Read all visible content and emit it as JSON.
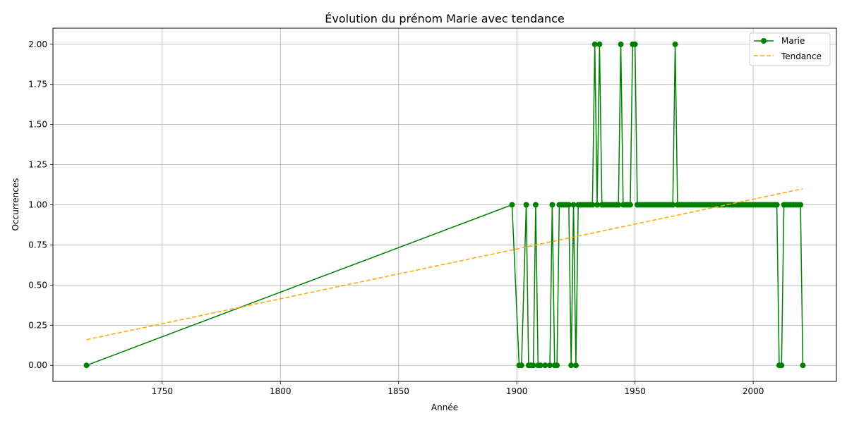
{
  "chart_data": {
    "type": "line",
    "title": "Évolution du prénom Marie avec tendance",
    "xlabel": "Année",
    "ylabel": "Occurrences",
    "xlim": [
      1703.8,
      2035.2
    ],
    "ylim": [
      -0.1,
      2.1
    ],
    "xticks": [
      1750,
      1800,
      1850,
      1900,
      1950,
      2000
    ],
    "yticks": [
      0.0,
      0.25,
      0.5,
      0.75,
      1.0,
      1.25,
      1.5,
      1.75,
      2.0
    ],
    "ytick_labels": [
      "0.00",
      "0.25",
      "0.50",
      "0.75",
      "1.00",
      "1.25",
      "1.50",
      "1.75",
      "2.00"
    ],
    "xtick_labels": [
      "1750",
      "1800",
      "1850",
      "1900",
      "1950",
      "2000"
    ],
    "grid": true,
    "legend_position": "top-right",
    "series": [
      {
        "name": "Marie",
        "color": "#008000",
        "style": "solid",
        "marker": "circle",
        "points": [
          [
            1718,
            0
          ],
          [
            1898,
            1
          ],
          [
            1901,
            0
          ],
          [
            1902,
            0
          ],
          [
            1904,
            1
          ],
          [
            1905,
            0
          ],
          [
            1906,
            0
          ],
          [
            1907,
            0
          ],
          [
            1908,
            1
          ],
          [
            1909,
            0
          ],
          [
            1910,
            0
          ],
          [
            1912,
            0
          ],
          [
            1914,
            0
          ],
          [
            1915,
            1
          ],
          [
            1916,
            0
          ],
          [
            1917,
            0
          ],
          [
            1918,
            1
          ],
          [
            1919,
            1
          ],
          [
            1920,
            1
          ],
          [
            1921,
            1
          ],
          [
            1922,
            1
          ],
          [
            1923,
            0
          ],
          [
            1924,
            1
          ],
          [
            1925,
            0
          ],
          [
            1926,
            1
          ],
          [
            1927,
            1
          ],
          [
            1928,
            1
          ],
          [
            1929,
            1
          ],
          [
            1930,
            1
          ],
          [
            1931,
            1
          ],
          [
            1932,
            1
          ],
          [
            1933,
            2
          ],
          [
            1934,
            1
          ],
          [
            1935,
            2
          ],
          [
            1936,
            1
          ],
          [
            1937,
            1
          ],
          [
            1938,
            1
          ],
          [
            1939,
            1
          ],
          [
            1940,
            1
          ],
          [
            1941,
            1
          ],
          [
            1942,
            1
          ],
          [
            1943,
            1
          ],
          [
            1944,
            2
          ],
          [
            1945,
            1
          ],
          [
            1946,
            1
          ],
          [
            1947,
            1
          ],
          [
            1948,
            1
          ],
          [
            1949,
            2
          ],
          [
            1950,
            2
          ],
          [
            1951,
            1
          ],
          [
            1952,
            1
          ],
          [
            1953,
            1
          ],
          [
            1954,
            1
          ],
          [
            1955,
            1
          ],
          [
            1956,
            1
          ],
          [
            1957,
            1
          ],
          [
            1958,
            1
          ],
          [
            1959,
            1
          ],
          [
            1960,
            1
          ],
          [
            1961,
            1
          ],
          [
            1962,
            1
          ],
          [
            1963,
            1
          ],
          [
            1964,
            1
          ],
          [
            1965,
            1
          ],
          [
            1966,
            1
          ],
          [
            1967,
            2
          ],
          [
            1968,
            1
          ],
          [
            1969,
            1
          ],
          [
            1970,
            1
          ],
          [
            1971,
            1
          ],
          [
            1972,
            1
          ],
          [
            1973,
            1
          ],
          [
            1974,
            1
          ],
          [
            1975,
            1
          ],
          [
            1976,
            1
          ],
          [
            1977,
            1
          ],
          [
            1978,
            1
          ],
          [
            1979,
            1
          ],
          [
            1980,
            1
          ],
          [
            1981,
            1
          ],
          [
            1982,
            1
          ],
          [
            1983,
            1
          ],
          [
            1984,
            1
          ],
          [
            1985,
            1
          ],
          [
            1986,
            1
          ],
          [
            1987,
            1
          ],
          [
            1988,
            1
          ],
          [
            1989,
            1
          ],
          [
            1990,
            1
          ],
          [
            1991,
            1
          ],
          [
            1992,
            1
          ],
          [
            1993,
            1
          ],
          [
            1994,
            1
          ],
          [
            1995,
            1
          ],
          [
            1996,
            1
          ],
          [
            1997,
            1
          ],
          [
            1998,
            1
          ],
          [
            1999,
            1
          ],
          [
            2000,
            1
          ],
          [
            2001,
            1
          ],
          [
            2002,
            1
          ],
          [
            2003,
            1
          ],
          [
            2004,
            1
          ],
          [
            2005,
            1
          ],
          [
            2006,
            1
          ],
          [
            2007,
            1
          ],
          [
            2008,
            1
          ],
          [
            2009,
            1
          ],
          [
            2010,
            1
          ],
          [
            2011,
            0
          ],
          [
            2012,
            0
          ],
          [
            2013,
            1
          ],
          [
            2014,
            1
          ],
          [
            2015,
            1
          ],
          [
            2016,
            1
          ],
          [
            2017,
            1
          ],
          [
            2018,
            1
          ],
          [
            2019,
            1
          ],
          [
            2020,
            1
          ],
          [
            2021,
            0
          ]
        ]
      },
      {
        "name": "Tendance",
        "color": "#FFA500",
        "style": "dashed",
        "marker": "none",
        "points": [
          [
            1718,
            0.16
          ],
          [
            2021,
            1.1
          ]
        ]
      }
    ]
  }
}
